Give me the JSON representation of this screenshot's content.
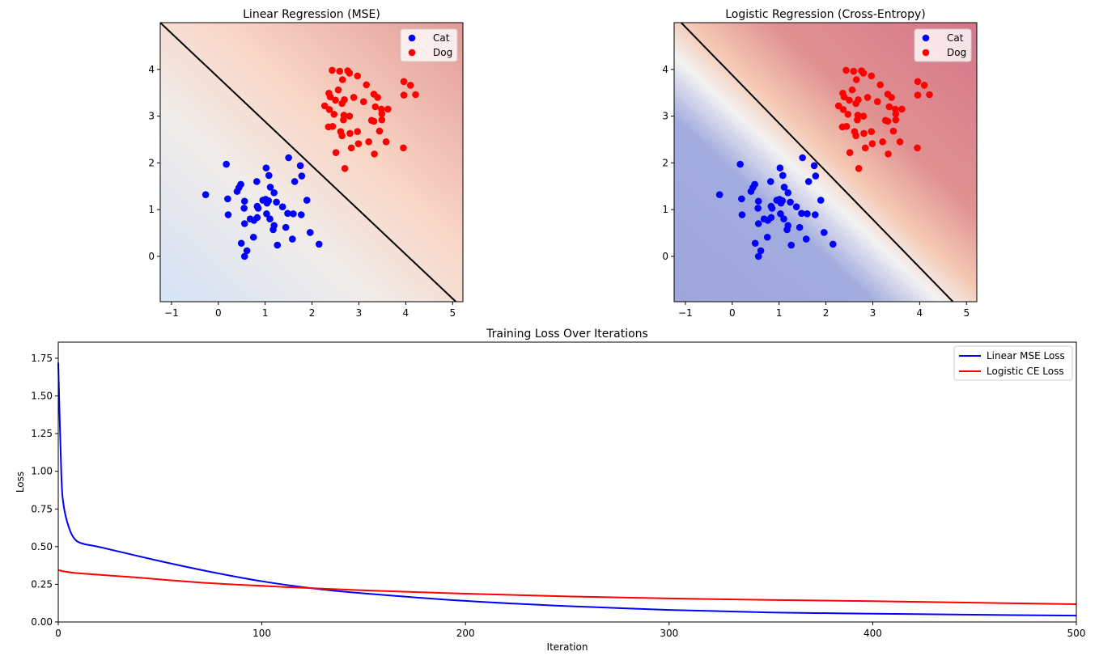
{
  "chart_data": [
    {
      "type": "scatter",
      "title": "Linear Regression (MSE)",
      "xlim": [
        -1.24,
        5.22
      ],
      "ylim": [
        -0.97,
        5.0
      ],
      "xticks": [
        -1,
        0,
        1,
        2,
        3,
        4,
        5
      ],
      "yticks": [
        0,
        1,
        2,
        3,
        4
      ],
      "legend_position": "top-right",
      "background": {
        "colormap": "coolwarm",
        "low": "#d5e2f7",
        "mid": "#f2ebe6",
        "high": "#e29c97",
        "strength": "faint"
      },
      "decision_boundary": {
        "color": "#000000",
        "points": [
          [
            -1.24,
            5.0
          ],
          [
            5.07,
            -0.97
          ]
        ]
      },
      "series": [
        {
          "name": "Cat",
          "color": "#0000ff",
          "points": [
            [
              0.17,
              1.97
            ],
            [
              -0.27,
              1.32
            ],
            [
              0.2,
              1.23
            ],
            [
              0.21,
              0.89
            ],
            [
              0.56,
              1.18
            ],
            [
              0.55,
              1.03
            ],
            [
              0.56,
              0.7
            ],
            [
              0.49,
              0.28
            ],
            [
              0.61,
              0.12
            ],
            [
              0.56,
              0.0
            ],
            [
              0.75,
              0.41
            ],
            [
              0.68,
              0.8
            ],
            [
              0.76,
              0.77
            ],
            [
              0.83,
              0.83
            ],
            [
              0.83,
              1.07
            ],
            [
              0.85,
              1.03
            ],
            [
              0.82,
              1.6
            ],
            [
              0.4,
              1.39
            ],
            [
              0.44,
              1.47
            ],
            [
              0.48,
              1.54
            ],
            [
              1.02,
              1.89
            ],
            [
              1.08,
              1.73
            ],
            [
              1.11,
              1.48
            ],
            [
              1.19,
              1.36
            ],
            [
              0.95,
              1.2
            ],
            [
              1.01,
              1.22
            ],
            [
              1.07,
              1.19
            ],
            [
              1.04,
              1.14
            ],
            [
              1.24,
              1.16
            ],
            [
              1.37,
              1.06
            ],
            [
              1.03,
              0.91
            ],
            [
              1.1,
              0.8
            ],
            [
              1.19,
              0.66
            ],
            [
              1.17,
              0.57
            ],
            [
              1.26,
              0.24
            ],
            [
              1.44,
              0.62
            ],
            [
              1.48,
              0.92
            ],
            [
              1.6,
              0.91
            ],
            [
              1.77,
              0.89
            ],
            [
              1.58,
              0.37
            ],
            [
              1.5,
              2.11
            ],
            [
              1.75,
              1.94
            ],
            [
              1.78,
              1.72
            ],
            [
              1.63,
              1.6
            ],
            [
              1.89,
              1.2
            ],
            [
              1.96,
              0.51
            ],
            [
              2.15,
              0.26
            ]
          ]
        },
        {
          "name": "Dog",
          "color": "#ff0000",
          "points": [
            [
              2.43,
              3.98
            ],
            [
              2.59,
              3.96
            ],
            [
              2.76,
              3.97
            ],
            [
              2.8,
              3.92
            ],
            [
              2.65,
              3.78
            ],
            [
              2.97,
              3.86
            ],
            [
              3.16,
              3.67
            ],
            [
              2.56,
              3.56
            ],
            [
              2.36,
              3.49
            ],
            [
              2.39,
              3.41
            ],
            [
              2.5,
              3.34
            ],
            [
              2.69,
              3.35
            ],
            [
              2.64,
              3.27
            ],
            [
              2.89,
              3.4
            ],
            [
              3.1,
              3.31
            ],
            [
              3.32,
              3.47
            ],
            [
              3.4,
              3.4
            ],
            [
              2.27,
              3.22
            ],
            [
              2.37,
              3.14
            ],
            [
              2.47,
              3.04
            ],
            [
              2.68,
              3.02
            ],
            [
              2.8,
              3.0
            ],
            [
              2.67,
              2.92
            ],
            [
              3.35,
              3.2
            ],
            [
              3.48,
              3.15
            ],
            [
              3.62,
              3.15
            ],
            [
              3.49,
              3.05
            ],
            [
              3.49,
              2.92
            ],
            [
              3.27,
              2.91
            ],
            [
              3.32,
              2.89
            ],
            [
              2.35,
              2.77
            ],
            [
              2.44,
              2.78
            ],
            [
              2.61,
              2.67
            ],
            [
              2.64,
              2.58
            ],
            [
              2.81,
              2.63
            ],
            [
              2.97,
              2.67
            ],
            [
              3.44,
              2.68
            ],
            [
              3.21,
              2.45
            ],
            [
              3.58,
              2.45
            ],
            [
              2.99,
              2.41
            ],
            [
              2.84,
              2.32
            ],
            [
              2.51,
              2.22
            ],
            [
              3.33,
              2.19
            ],
            [
              2.7,
              1.88
            ],
            [
              3.96,
              3.74
            ],
            [
              4.1,
              3.66
            ],
            [
              3.96,
              3.45
            ],
            [
              4.21,
              3.46
            ],
            [
              3.95,
              2.32
            ]
          ]
        }
      ]
    },
    {
      "type": "scatter",
      "title": "Logistic Regression (Cross-Entropy)",
      "xlim": [
        -1.24,
        5.22
      ],
      "ylim": [
        -0.97,
        5.0
      ],
      "xticks": [
        -1,
        0,
        1,
        2,
        3,
        4,
        5
      ],
      "yticks": [
        0,
        1,
        2,
        3,
        4
      ],
      "legend_position": "top-right",
      "background": {
        "colormap": "coolwarm",
        "low": "#9ea6dc",
        "mid": "#f4f1f0",
        "high": "#d87a8b",
        "strength": "strong"
      },
      "decision_boundary": {
        "color": "#000000",
        "points": [
          [
            -1.09,
            5.0
          ],
          [
            4.71,
            -0.97
          ]
        ]
      },
      "series": [
        {
          "name": "Cat",
          "color": "#0000ff",
          "points": "same as Linear Regression panel"
        },
        {
          "name": "Dog",
          "color": "#ff0000",
          "points": "same as Linear Regression panel"
        }
      ]
    },
    {
      "type": "line",
      "title": "Training Loss Over Iterations",
      "xlabel": "Iteration",
      "ylabel": "Loss",
      "xlim": [
        0,
        500
      ],
      "ylim": [
        0,
        1.857
      ],
      "xticks": [
        0,
        100,
        200,
        300,
        400,
        500
      ],
      "yticks": [
        "0.00",
        "0.25",
        "0.50",
        "0.75",
        "1.00",
        "1.25",
        "1.50",
        "1.75"
      ],
      "legend_position": "top-right",
      "series": [
        {
          "name": "Linear MSE Loss",
          "color": "#0000ff",
          "x": [
            0,
            1.5,
            2.8,
            5.4,
            8.1,
            12,
            21,
            48,
            74,
            101,
            127,
            150,
            200,
            250,
            300,
            350,
            400,
            450,
            500
          ],
          "y": [
            1.72,
            0.98,
            0.76,
            0.62,
            0.55,
            0.52,
            0.495,
            0.41,
            0.335,
            0.268,
            0.22,
            0.19,
            0.14,
            0.105,
            0.08,
            0.063,
            0.055,
            0.048,
            0.042
          ]
        },
        {
          "name": "Logistic CE Loss",
          "color": "#ff0000",
          "x": [
            0,
            8,
            35,
            74,
            114,
            150,
            200,
            250,
            300,
            350,
            400,
            450,
            500
          ],
          "y": [
            0.344,
            0.326,
            0.299,
            0.258,
            0.231,
            0.21,
            0.188,
            0.17,
            0.156,
            0.146,
            0.138,
            0.128,
            0.118
          ]
        }
      ]
    }
  ]
}
